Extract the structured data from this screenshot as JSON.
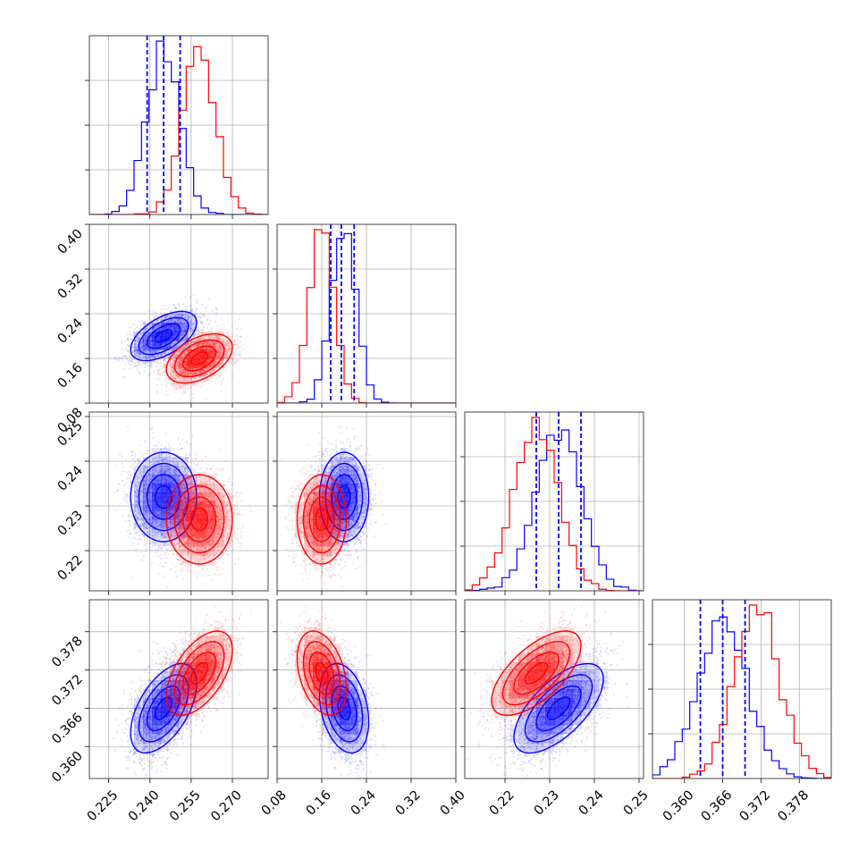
{
  "chart_data": {
    "type": "corner",
    "grid": true,
    "colors": {
      "blue": "#0000ff",
      "red": "#ff0000"
    },
    "parameters": [
      {
        "name": "",
        "range": [
          0.218,
          0.283
        ],
        "ticks": [
          0.225,
          0.24,
          0.255,
          0.27
        ],
        "tick_labels": [
          "0.225",
          "0.240",
          "0.255",
          "0.270"
        ]
      },
      {
        "name": "",
        "range": [
          0.08,
          0.4
        ],
        "ticks": [
          0.08,
          0.16,
          0.24,
          0.32,
          0.4
        ],
        "tick_labels": [
          "0.08",
          "0.16",
          "0.24",
          "0.32",
          "0.40"
        ]
      },
      {
        "name": "",
        "range": [
          0.211,
          0.251
        ],
        "ticks": [
          0.22,
          0.23,
          0.24,
          0.25
        ],
        "tick_labels": [
          "0.22",
          "0.23",
          "0.24",
          "0.25"
        ]
      },
      {
        "name": "",
        "range": [
          0.355,
          0.383
        ],
        "ticks": [
          0.36,
          0.366,
          0.372,
          0.378
        ],
        "tick_labels": [
          "0.360",
          "0.366",
          "0.372",
          "0.378"
        ]
      }
    ],
    "series": [
      {
        "name": "",
        "color": "blue",
        "mean": [
          0.245,
          0.2,
          0.232,
          0.366
        ],
        "sigma": [
          0.006,
          0.022,
          0.005,
          0.0035
        ],
        "corr": [
          [
            1,
            0.55,
            0,
            0.55
          ],
          [
            0.55,
            1,
            0,
            -0.3
          ],
          [
            0,
            0,
            1,
            0.65
          ],
          [
            0.55,
            -0.3,
            0.65,
            1
          ]
        ]
      },
      {
        "name": "",
        "color": "red",
        "mean": [
          0.258,
          0.16,
          0.227,
          0.3715
        ],
        "sigma": [
          0.006,
          0.022,
          0.005,
          0.0033
        ],
        "corr": [
          [
            1,
            0.45,
            0,
            0.55
          ],
          [
            0.45,
            1,
            0,
            -0.35
          ],
          [
            0,
            0,
            1,
            0.65
          ],
          [
            0.55,
            -0.35,
            0.65,
            1
          ]
        ]
      }
    ],
    "quantile_lines": [
      {
        "parameter": 0,
        "color": "blue",
        "values": [
          0.239,
          0.245,
          0.251
        ]
      },
      {
        "parameter": 1,
        "color": "blue",
        "values": [
          0.176,
          0.195,
          0.218
        ]
      },
      {
        "parameter": 2,
        "color": "blue",
        "values": [
          0.227,
          0.232,
          0.237
        ]
      },
      {
        "parameter": 3,
        "color": "blue",
        "values": [
          0.3625,
          0.366,
          0.3695
        ]
      }
    ]
  }
}
